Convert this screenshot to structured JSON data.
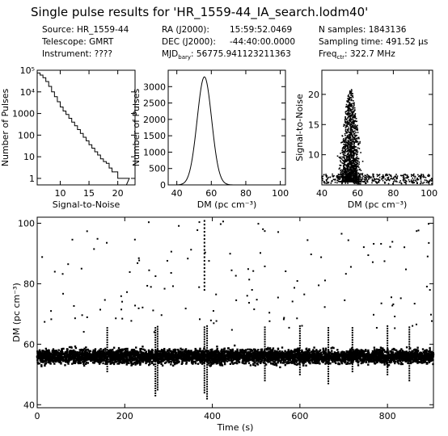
{
  "title": "Single pulse results for 'HR_1559-44_IA_search.lodm40'",
  "header": {
    "col1": [
      "Source: HR_1559-44",
      "Telescope: GMRT",
      "Instrument: ????"
    ],
    "col2": [
      {
        "label": "RA (J2000):",
        "value": "15:59:52.0469"
      },
      {
        "label": "DEC (J2000):",
        "value": "-44:40:00.0000"
      },
      {
        "label": "MJD",
        "sub": "bary",
        "tail": ": 56775.941123211363"
      }
    ],
    "col3": [
      {
        "text": "N samples: 1843136"
      },
      {
        "text": "Sampling time: 491.52 µs"
      },
      {
        "pre": "Freq",
        "sub": "ctr",
        "tail": ": 322.7 MHz"
      }
    ]
  },
  "chart_data": [
    {
      "type": "line",
      "xlabel": "Signal-to-Noise",
      "ylabel": "Number of Pulses",
      "xlim": [
        6,
        23
      ],
      "ylim": [
        0.5,
        100000
      ],
      "yscale": "log",
      "xticks": [
        10,
        15,
        20
      ],
      "yticks": [
        1,
        10,
        100,
        1000,
        10000,
        100000
      ],
      "yticklabels": [
        "1",
        "10",
        "100",
        "1000",
        "10⁴",
        "10⁵"
      ],
      "steps": [
        [
          6,
          75000
        ],
        [
          6.5,
          60000
        ],
        [
          7,
          45000
        ],
        [
          7.5,
          30000
        ],
        [
          8,
          18000
        ],
        [
          8.5,
          10000
        ],
        [
          9,
          6000
        ],
        [
          9.5,
          3500
        ],
        [
          10,
          2000
        ],
        [
          10.5,
          1300
        ],
        [
          11,
          900
        ],
        [
          11.5,
          600
        ],
        [
          12,
          400
        ],
        [
          12.5,
          270
        ],
        [
          13,
          180
        ],
        [
          13.5,
          120
        ],
        [
          14,
          80
        ],
        [
          14.5,
          55
        ],
        [
          15,
          36
        ],
        [
          15.5,
          25
        ],
        [
          16,
          17
        ],
        [
          16.5,
          12
        ],
        [
          17,
          8
        ],
        [
          17.5,
          6
        ],
        [
          18,
          5
        ],
        [
          18.5,
          3
        ],
        [
          19,
          2
        ],
        [
          20,
          1
        ],
        [
          21,
          1
        ],
        [
          21.5,
          1
        ]
      ]
    },
    {
      "type": "line",
      "xlabel": "DM (pc cm⁻³)",
      "ylabel": "Number of Pulses",
      "xlim": [
        35,
        103
      ],
      "ylim": [
        0,
        3500
      ],
      "xticks": [
        40,
        60,
        80,
        100
      ],
      "yticks": [
        0,
        500,
        1000,
        1500,
        2000,
        2500,
        3000
      ],
      "peak_dm": 56,
      "peak_count": 3300
    },
    {
      "type": "scatter",
      "xlabel": "DM (pc cm⁻³)",
      "ylabel": "Signal-to-Noise",
      "xlim": [
        40,
        102
      ],
      "ylim": [
        5,
        24
      ],
      "xticks": [
        40,
        60,
        80,
        100
      ],
      "yticks": [
        10,
        15,
        20
      ],
      "peak_dm": 56,
      "max_snr": 21
    },
    {
      "type": "scatter",
      "xlabel": "Time (s)",
      "ylabel": "DM (pc cm⁻³)",
      "xlim": [
        0,
        905
      ],
      "ylim": [
        39,
        102
      ],
      "xticks": [
        0,
        200,
        400,
        600,
        800
      ],
      "yticks": [
        40,
        60,
        80,
        100
      ],
      "band_center_dm": 56
    }
  ]
}
